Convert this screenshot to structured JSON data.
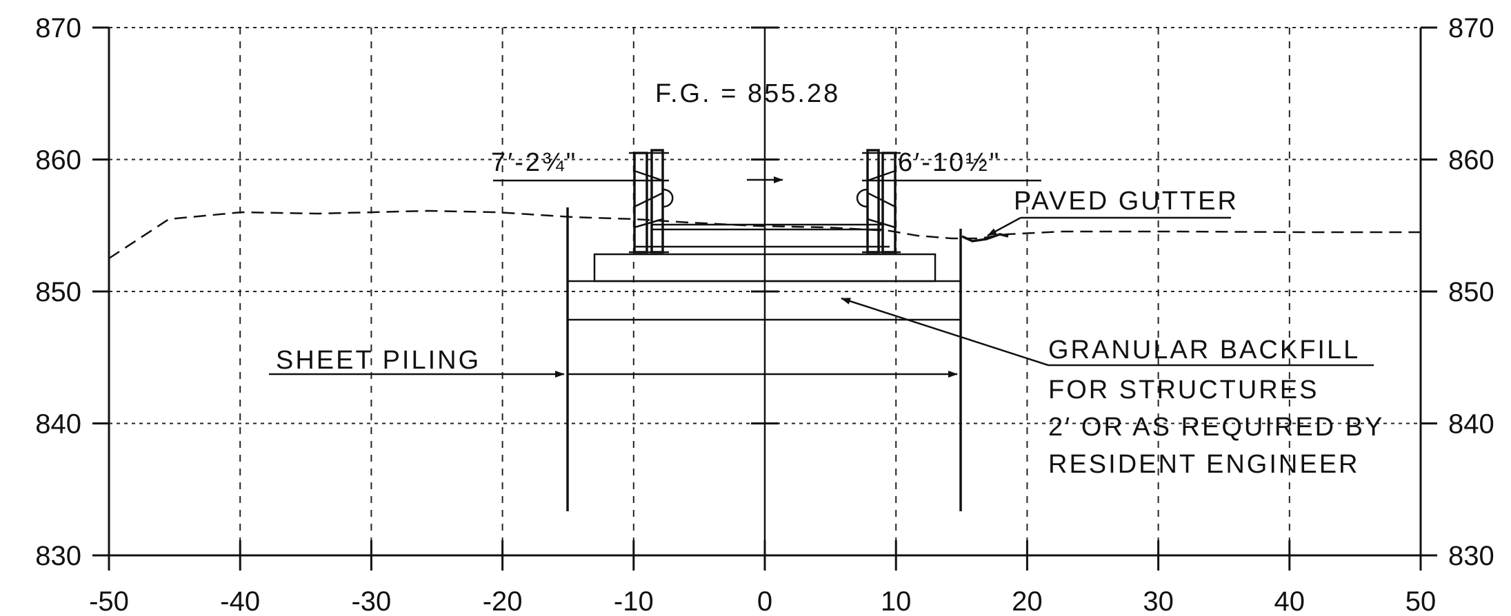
{
  "section": {
    "y_axis_left_labels": [
      "870",
      "860",
      "850",
      "840",
      "830"
    ],
    "y_axis_right_labels": [
      "870",
      "860",
      "850",
      "840",
      "830"
    ],
    "x_axis_labels": [
      "-50",
      "-40",
      "-30",
      "-20",
      "-10",
      "0",
      "10",
      "20",
      "30",
      "40",
      "50"
    ],
    "y_range": [
      830,
      870
    ],
    "x_range": [
      -50,
      50
    ]
  },
  "annotations": {
    "finished_grade": "F.G. = 855.28",
    "left_dimension": "7′-2¾\"",
    "right_dimension": "6′-10½\"",
    "paved_gutter": "PAVED GUTTER",
    "sheet_piling": "SHEET PILING",
    "backfill_line1": "GRANULAR BACKFILL",
    "backfill_line2": "FOR STRUCTURES",
    "backfill_line3": "2′ OR AS REQUIRED BY",
    "backfill_line4": "RESIDENT ENGINEER"
  }
}
